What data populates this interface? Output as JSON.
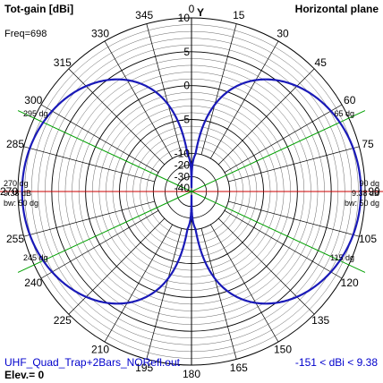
{
  "header": {
    "title_left": "Tot-gain [dBi]",
    "title_right": "Horizontal plane",
    "freq": "Freq=698"
  },
  "footer": {
    "filename": "UHF_Quad_Trap+2Bars_NORefl.out",
    "elevation": "Elev.= 0",
    "range": "-151 < dBi < 9.38"
  },
  "colors": {
    "pattern": "#1a1ab8",
    "grid": "#000000",
    "beamwidth": "#00a000",
    "max_line": "#cc0000",
    "footer_text": "#0000cc"
  },
  "chart_data": {
    "type": "polar",
    "angle_labels": [
      "0",
      "15",
      "30",
      "45",
      "60",
      "75",
      "90",
      "105",
      "120",
      "135",
      "150",
      "165",
      "180",
      "195",
      "210",
      "225",
      "240",
      "255",
      "270",
      "285",
      "300",
      "315",
      "330",
      "345"
    ],
    "radial_axis_label": "Y",
    "radial_tick_labels": [
      "10",
      "5",
      "0",
      "-5",
      "-10",
      "-20",
      "-30",
      "-40"
    ],
    "radial_tick_values": [
      10,
      5,
      0,
      -5,
      -10,
      -20,
      -30,
      -40
    ],
    "max_gain_dbi": 9.38,
    "min_gain_dbi": -151,
    "max_directions_deg": [
      90,
      270
    ],
    "beamwidth_deg": 50,
    "beamwidth_lines_deg": [
      65,
      115,
      245,
      295
    ],
    "annotations": {
      "right_max": {
        "angle": "90 dg",
        "gain": "9.38 dB",
        "bw": "bw: 50 dg"
      },
      "left_max": {
        "angle": "270 dg",
        "gain": "9.38 dB",
        "bw": "bw: 50 dg"
      },
      "bw_labels": [
        "65 dg",
        "115 dg",
        "245 dg",
        "295 dg"
      ]
    },
    "pattern_model": "figure-eight, gain(θ) ≈ 9.38 dBi + 10·log10(sin²θ)"
  }
}
